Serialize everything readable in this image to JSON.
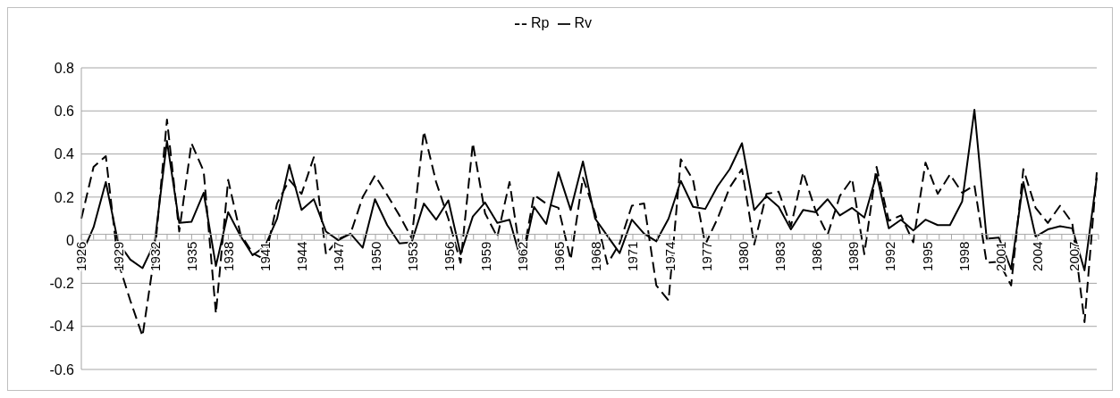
{
  "chart_data": {
    "type": "line",
    "categories": [
      "1926",
      null,
      null,
      "1929",
      null,
      null,
      "1932",
      null,
      null,
      "1935",
      null,
      null,
      "1938",
      null,
      null,
      "1941",
      null,
      null,
      "1944",
      null,
      null,
      "1947",
      null,
      null,
      "1950",
      null,
      null,
      "1953",
      null,
      null,
      "1956",
      null,
      null,
      "1959",
      null,
      null,
      "1962",
      null,
      null,
      "1965",
      null,
      null,
      "1968",
      null,
      null,
      "1971",
      null,
      null,
      "1974",
      null,
      null,
      "1977",
      null,
      null,
      "1980",
      null,
      null,
      "1983",
      null,
      null,
      "1986",
      null,
      null,
      "1989",
      null,
      null,
      "1992",
      null,
      null,
      "1995",
      null,
      null,
      "1998",
      null,
      null,
      "2001",
      null,
      null,
      "2004",
      null,
      null,
      "2007",
      null,
      null
    ],
    "series": [
      {
        "name": "Rp",
        "color": "#000000",
        "line_style": "dashed",
        "values": [
          0.1,
          0.34,
          0.39,
          -0.1,
          -0.28,
          -0.445,
          -0.06,
          0.56,
          0.04,
          0.45,
          0.32,
          -0.34,
          0.28,
          0.03,
          -0.06,
          -0.09,
          0.17,
          0.28,
          0.215,
          0.385,
          -0.065,
          0.005,
          0.03,
          0.2,
          0.3,
          0.21,
          0.115,
          0.01,
          0.505,
          0.27,
          0.1,
          -0.105,
          0.45,
          0.125,
          0.015,
          0.27,
          -0.105,
          0.21,
          0.17,
          0.15,
          -0.09,
          0.29,
          0.125,
          -0.11,
          -0.015,
          0.16,
          0.17,
          -0.21,
          -0.28,
          0.375,
          0.28,
          -0.02,
          0.1,
          0.245,
          0.33,
          -0.02,
          0.215,
          0.225,
          0.065,
          0.315,
          0.14,
          0.025,
          0.205,
          0.285,
          -0.065,
          0.34,
          0.09,
          0.115,
          -0.01,
          0.36,
          0.215,
          0.305,
          0.22,
          0.255,
          -0.105,
          -0.1,
          -0.21,
          0.33,
          0.15,
          0.08,
          0.16,
          0.08,
          -0.38,
          0.315
        ]
      },
      {
        "name": "Rv",
        "color": "#000000",
        "line_style": "solid",
        "values": [
          -0.07,
          0.06,
          0.27,
          -0.01,
          -0.09,
          -0.13,
          -0.01,
          0.46,
          0.08,
          0.085,
          0.22,
          -0.12,
          0.13,
          0.02,
          -0.07,
          -0.03,
          0.1,
          0.35,
          0.14,
          0.19,
          0.04,
          0.0,
          0.03,
          -0.035,
          0.19,
          0.07,
          -0.015,
          -0.01,
          0.17,
          0.095,
          0.185,
          -0.065,
          0.11,
          0.175,
          0.08,
          0.095,
          -0.105,
          0.155,
          0.075,
          0.315,
          0.14,
          0.365,
          0.1,
          0.02,
          -0.06,
          0.095,
          0.03,
          -0.005,
          0.1,
          0.275,
          0.155,
          0.145,
          0.25,
          0.33,
          0.45,
          0.14,
          0.205,
          0.155,
          0.05,
          0.14,
          0.13,
          0.19,
          0.115,
          0.15,
          0.105,
          0.305,
          0.055,
          0.095,
          0.045,
          0.095,
          0.07,
          0.07,
          0.18,
          0.605,
          0.007,
          0.012,
          -0.135,
          0.27,
          0.017,
          0.05,
          0.065,
          0.055,
          -0.14,
          0.29
        ]
      }
    ],
    "ylim": [
      -0.6,
      0.8
    ],
    "yticks": [
      -0.6,
      -0.4,
      -0.2,
      0,
      0.2,
      0.4,
      0.6,
      0.8
    ],
    "grid": "y",
    "legend": "top",
    "marker": "none"
  }
}
